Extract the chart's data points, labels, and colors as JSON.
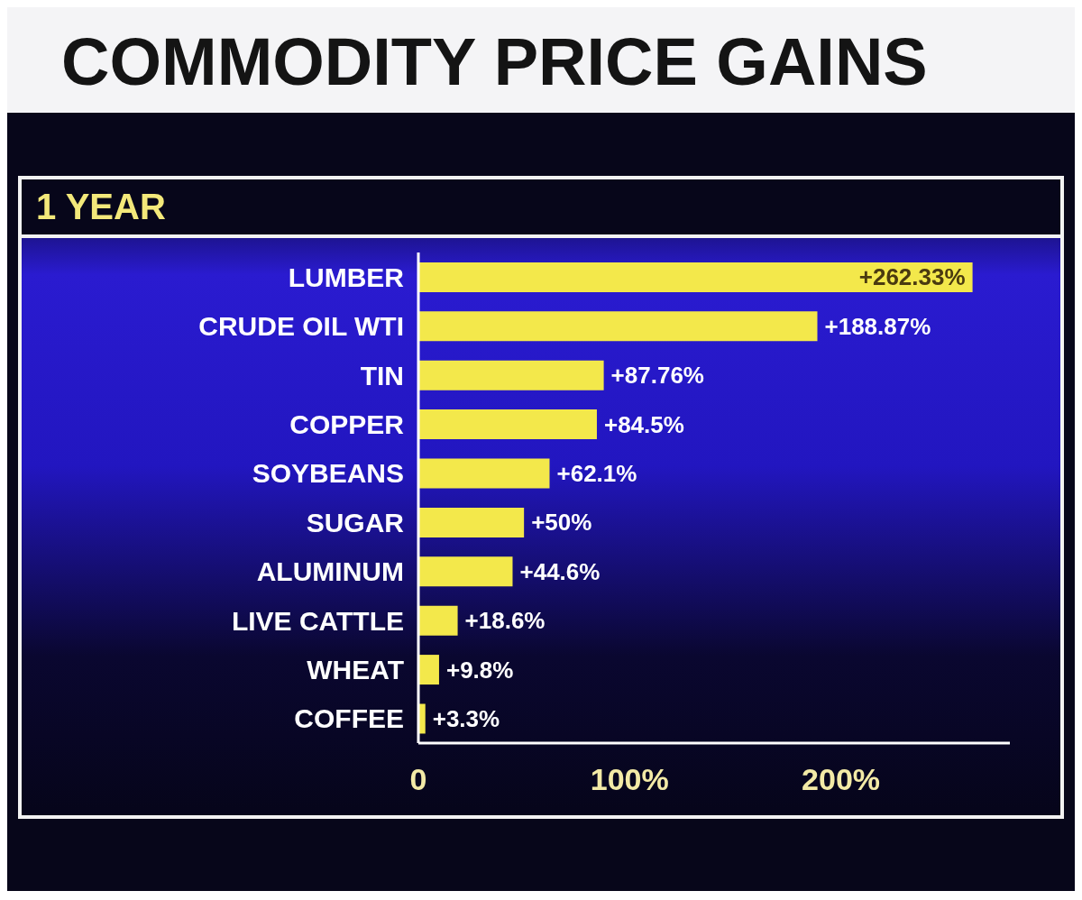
{
  "chart_data": {
    "type": "bar",
    "title": "COMMODITY PRICE GAINS",
    "subtitle": "1 YEAR",
    "orientation": "horizontal",
    "categories": [
      "LUMBER",
      "CRUDE OIL WTI",
      "TIN",
      "COPPER",
      "SOYBEANS",
      "SUGAR",
      "ALUMINUM",
      "LIVE CATTLE",
      "WHEAT",
      "COFFEE"
    ],
    "values": [
      262.33,
      188.87,
      87.76,
      84.5,
      62.1,
      50,
      44.6,
      18.6,
      9.8,
      3.3
    ],
    "value_labels": [
      "+262.33%",
      "+188.87%",
      "+87.76%",
      "+84.5%",
      "+62.1%",
      "+50%",
      "+44.6%",
      "+18.6%",
      "+9.8%",
      "+3.3%"
    ],
    "color": "#f3e84b",
    "xlim": [
      0,
      280
    ],
    "xticks": [
      0,
      {
        "value": 100,
        "label": "100%"
      },
      {
        "value": 200,
        "label": "200%"
      }
    ]
  }
}
